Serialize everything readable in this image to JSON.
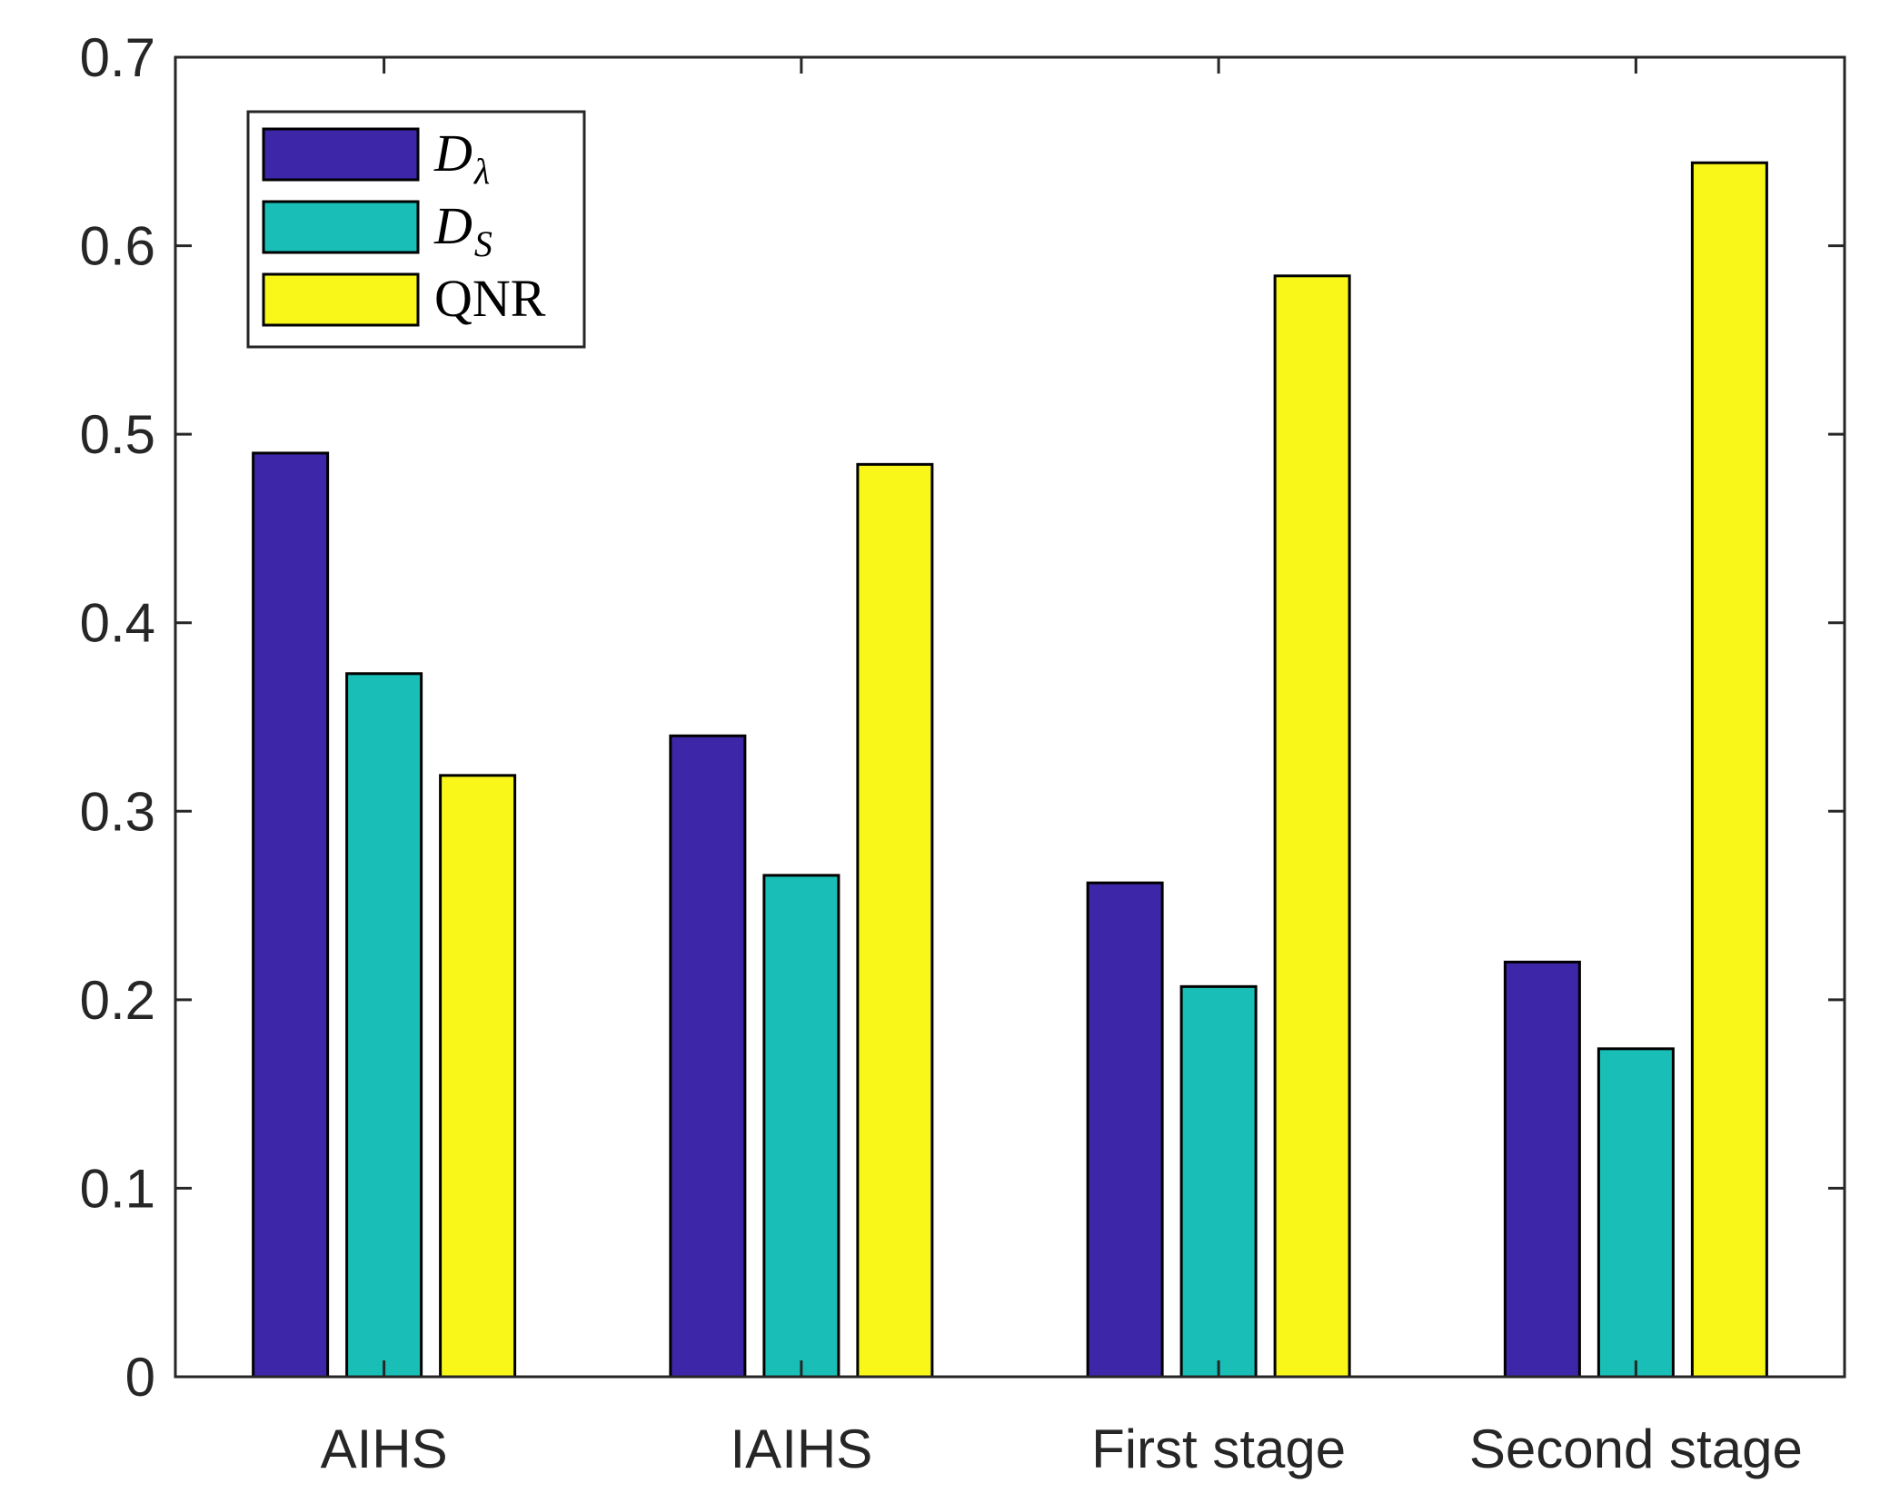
{
  "chart_data": {
    "type": "bar",
    "categories": [
      "AIHS",
      "IAIHS",
      "First stage",
      "Second stage"
    ],
    "series": [
      {
        "name": "D_λ",
        "legend_main": "D",
        "legend_sub": "λ",
        "color": "#3E26A8",
        "values": [
          0.49,
          0.34,
          0.262,
          0.22
        ]
      },
      {
        "name": "D_S",
        "legend_main": "D",
        "legend_sub": "S",
        "color": "#19BFB7",
        "values": [
          0.373,
          0.266,
          0.207,
          0.174
        ]
      },
      {
        "name": "QNR",
        "legend_main": "QNR",
        "legend_sub": "",
        "color": "#F9F71A",
        "values": [
          0.319,
          0.484,
          0.584,
          0.644
        ]
      }
    ],
    "title": "",
    "xlabel": "",
    "ylabel": "",
    "ylim": [
      0,
      0.7
    ],
    "yticks": [
      0,
      0.1,
      0.2,
      0.3,
      0.4,
      0.5,
      0.6,
      0.7
    ],
    "ytick_labels": [
      "0",
      "0.1",
      "0.2",
      "0.3",
      "0.4",
      "0.5",
      "0.6",
      "0.7"
    ],
    "grid": false,
    "legend_position": "top-left"
  }
}
